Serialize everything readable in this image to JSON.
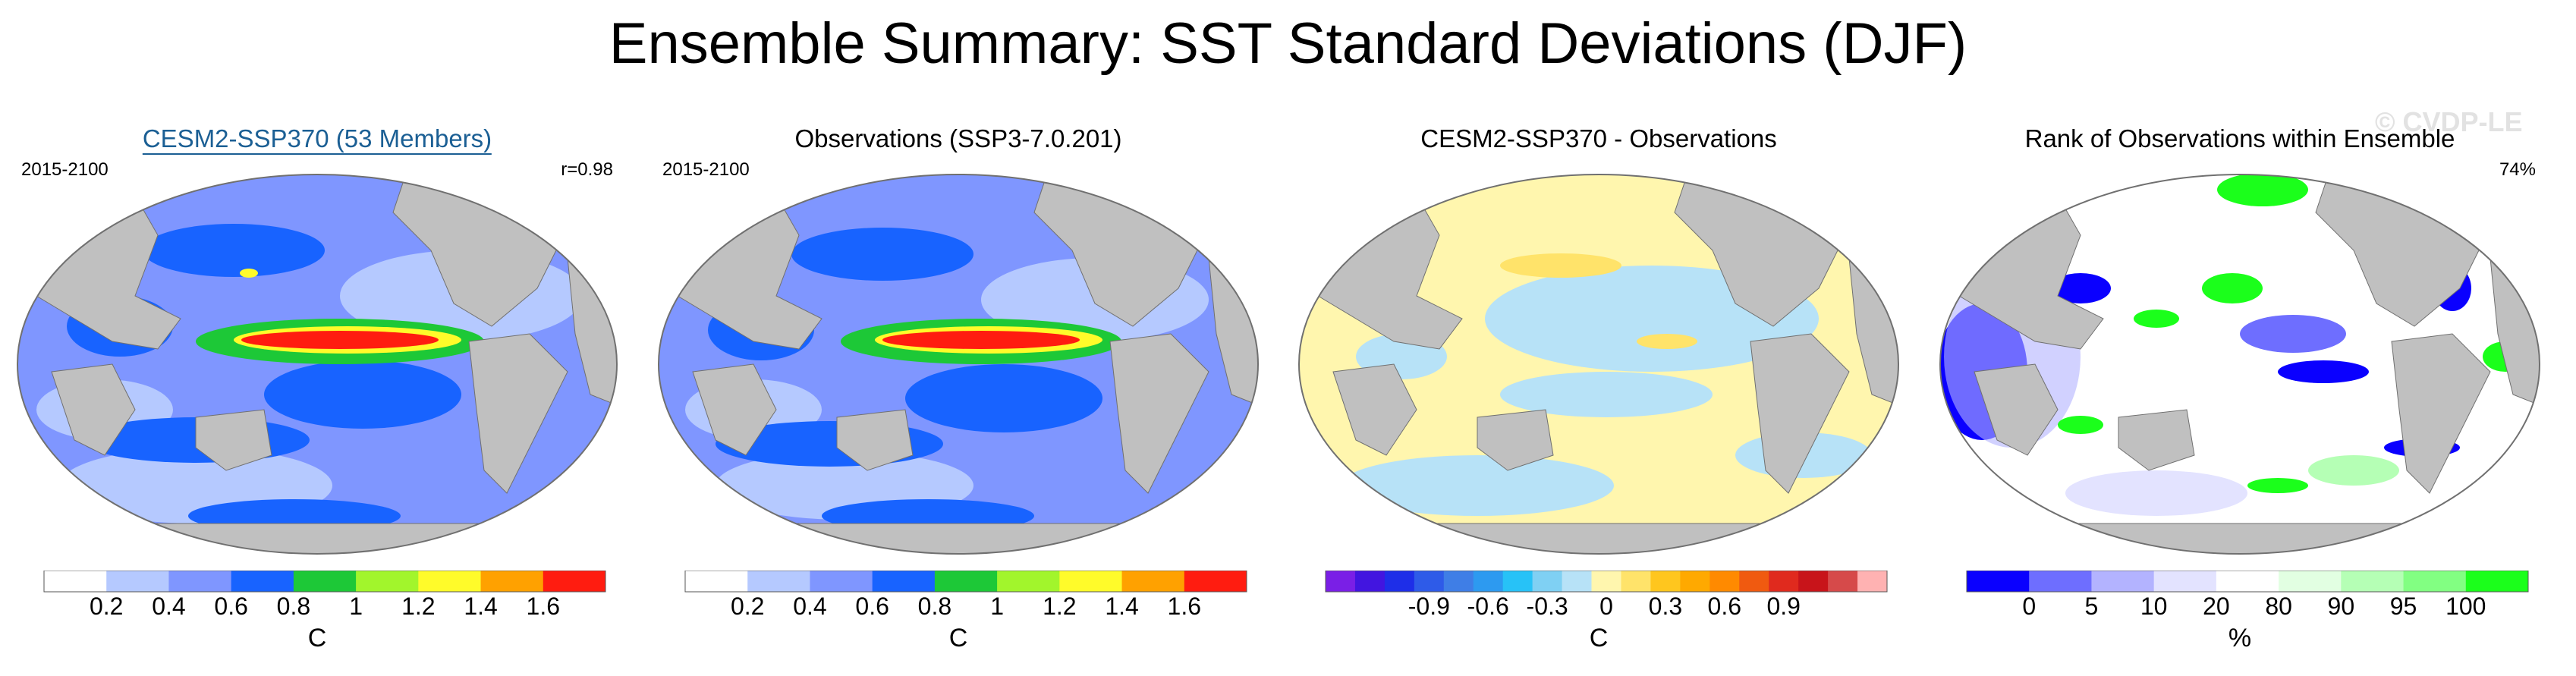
{
  "title": "Ensemble Summary: SST Standard Deviations (DJF)",
  "watermark": "© CVDP-LE",
  "chart_data": [
    {
      "type": "heatmap",
      "title": "CESM2-SSP370 (53 Members)",
      "left_label": "2015-2100",
      "right_label": "r=0.98",
      "colorbar_label": "C",
      "levels": [
        0.2,
        0.4,
        0.6,
        0.8,
        1,
        1.2,
        1.4,
        1.6
      ],
      "tick_labels": [
        "0.2",
        "0.4",
        "0.6",
        "0.8",
        "1",
        "1.2",
        "1.4",
        "1.6"
      ],
      "colors": [
        "#ffffff",
        "#b5c9ff",
        "#7f96ff",
        "#1863ff",
        "#1dc837",
        "#a2f52c",
        "#fffb2a",
        "#ffa100",
        "#ff1c10"
      ]
    },
    {
      "type": "heatmap",
      "title": "Observations (SSP3-7.0.201)",
      "left_label": "2015-2100",
      "right_label": "",
      "colorbar_label": "C",
      "levels": [
        0.2,
        0.4,
        0.6,
        0.8,
        1,
        1.2,
        1.4,
        1.6
      ],
      "tick_labels": [
        "0.2",
        "0.4",
        "0.6",
        "0.8",
        "1",
        "1.2",
        "1.4",
        "1.6"
      ],
      "colors": [
        "#ffffff",
        "#b5c9ff",
        "#7f96ff",
        "#1863ff",
        "#1dc837",
        "#a2f52c",
        "#fffb2a",
        "#ffa100",
        "#ff1c10"
      ]
    },
    {
      "type": "heatmap",
      "title": "CESM2-SSP370 - Observations",
      "left_label": "",
      "right_label": "",
      "colorbar_label": "C",
      "levels": [
        -1.05,
        -0.9,
        -0.75,
        -0.6,
        -0.45,
        -0.3,
        -0.15,
        0,
        0.15,
        0.3,
        0.45,
        0.6,
        0.75,
        0.9,
        1.05
      ],
      "tick_labels": [
        "-0.9",
        "",
        "-0.6",
        "",
        "-0.3",
        "",
        "0",
        "",
        "0.3",
        "",
        "0.6",
        "",
        "0.9"
      ],
      "colors": [
        "#7a1fe6",
        "#4215e0",
        "#1e2ee8",
        "#2e5be8",
        "#3f7ee6",
        "#2d9af0",
        "#27c2f7",
        "#7fd0f3",
        "#b7e2f7",
        "#fff6ae",
        "#ffe36a",
        "#ffc61e",
        "#ffa900",
        "#ff8a00",
        "#f05a10",
        "#e02a1e",
        "#c8141a",
        "#d64a4a",
        "#ffb2b2"
      ]
    },
    {
      "type": "heatmap",
      "title": "Rank of Observations within Ensemble",
      "left_label": "",
      "right_label": "74%",
      "colorbar_label": "%",
      "levels": [
        0,
        5,
        10,
        20,
        80,
        90,
        95,
        100
      ],
      "tick_labels": [
        "0",
        "5",
        "10",
        "20",
        "80",
        "90",
        "95",
        "100"
      ],
      "colors": [
        "#0a00ff",
        "#6e6eff",
        "#b3b3ff",
        "#e3e3ff",
        "#ffffff",
        "#e2ffe2",
        "#b5ffb5",
        "#82ff82",
        "#1bff1b"
      ]
    }
  ]
}
